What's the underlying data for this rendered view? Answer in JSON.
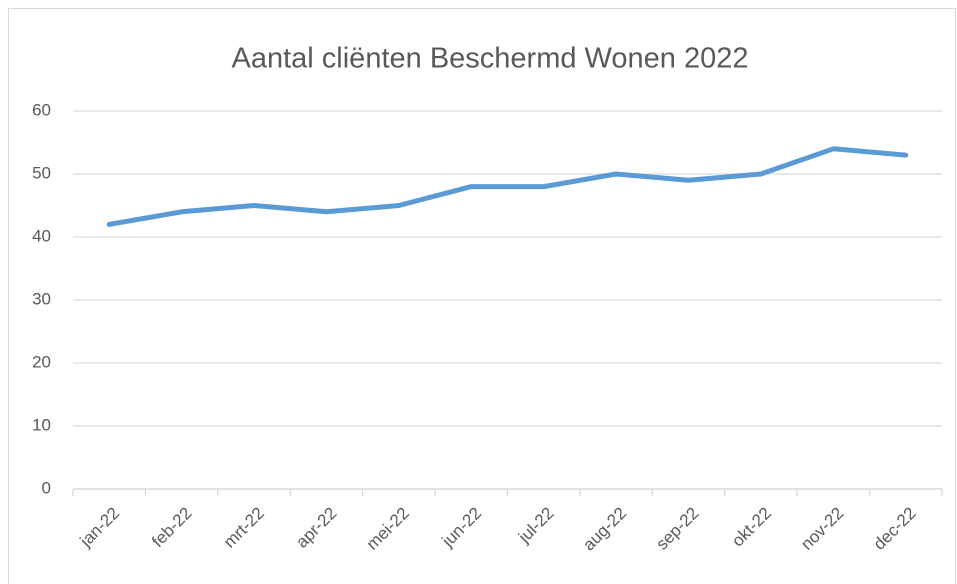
{
  "chart_data": {
    "type": "line",
    "title": "Aantal cliënten Beschermd Wonen 2022",
    "categories": [
      "jan-22",
      "feb-22",
      "mrt-22",
      "apr-22",
      "mei-22",
      "jun-22",
      "jul-22",
      "aug-22",
      "sep-22",
      "okt-22",
      "nov-22",
      "dec-22"
    ],
    "series": [
      {
        "name": "Aantal cliënten",
        "color": "#5b9bd5",
        "values": [
          42,
          44,
          45,
          44,
          45,
          48,
          48,
          50,
          49,
          50,
          54,
          53
        ]
      }
    ],
    "ylim": [
      0,
      60
    ],
    "yticks": [
      0,
      10,
      20,
      30,
      40,
      50,
      60
    ],
    "grid": true
  }
}
